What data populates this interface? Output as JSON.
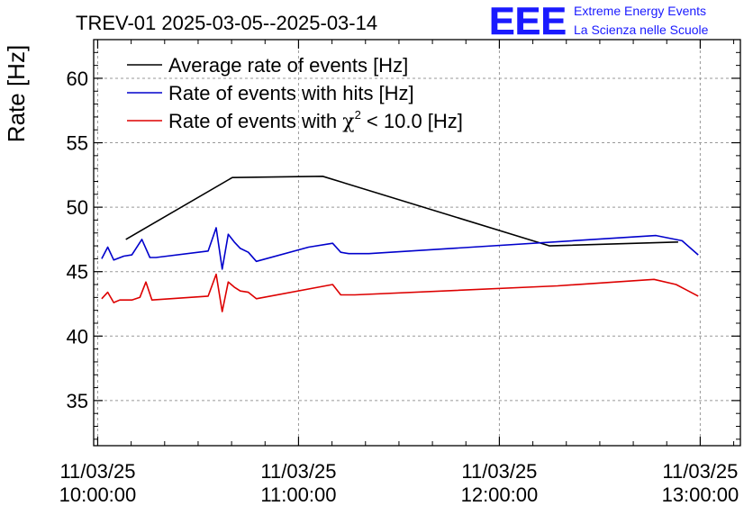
{
  "header": {
    "title": "TREV-01 2025-03-05--2025-03-14",
    "logo_text": "EEE",
    "org_line1": "Extreme Energy Events",
    "org_line2": "La Scienza nelle Scuole",
    "brand_color": "#1a1aff"
  },
  "chart_data": {
    "type": "line",
    "title": "TREV-01 2025-03-05--2025-03-14",
    "xlabel": "",
    "ylabel": "Rate [Hz]",
    "xlim": [
      -0.02,
      3.2
    ],
    "ylim": [
      31.5,
      63
    ],
    "x_unit": "hours since 11/03/25 10:00:00",
    "yticks": [
      35,
      40,
      45,
      50,
      55,
      60
    ],
    "ytick_labels": [
      "35",
      "40",
      "45",
      "50",
      "55",
      "60"
    ],
    "xticks": [
      0,
      1,
      2,
      3
    ],
    "xtick_labels": [
      {
        "date": "11/03/25",
        "time": "10:00:00"
      },
      {
        "date": "11/03/25",
        "time": "11:00:00"
      },
      {
        "date": "11/03/25",
        "time": "12:00:00"
      },
      {
        "date": "11/03/25",
        "time": "13:00:00"
      }
    ],
    "grid": true,
    "legend_position": "top-left",
    "series": [
      {
        "name": "Average rate of events [Hz]",
        "legend_label": "Average rate of events [Hz]",
        "color": "#000000",
        "x": [
          0.14,
          0.67,
          1.12,
          2.25,
          2.89
        ],
        "y": [
          47.5,
          52.3,
          52.4,
          47.0,
          47.3
        ]
      },
      {
        "name": "Rate of events with hits [Hz]",
        "legend_label": "Rate of events with hits [Hz]",
        "color": "#0000cc",
        "x": [
          0.02,
          0.05,
          0.08,
          0.13,
          0.17,
          0.22,
          0.26,
          0.29,
          0.55,
          0.59,
          0.62,
          0.65,
          0.68,
          0.71,
          0.75,
          0.79,
          1.05,
          1.17,
          1.21,
          1.25,
          1.35,
          2.78,
          2.91,
          2.99
        ],
        "y": [
          46.0,
          46.9,
          45.9,
          46.2,
          46.3,
          47.5,
          46.1,
          46.1,
          46.6,
          48.4,
          45.2,
          47.9,
          47.3,
          46.8,
          46.5,
          45.8,
          46.9,
          47.2,
          46.5,
          46.4,
          46.4,
          47.8,
          47.4,
          46.3
        ]
      },
      {
        "name": "Rate of events with chi-squared < 10.0 [Hz]",
        "legend_prefix": "Rate of events with ",
        "legend_chi": "χ",
        "legend_sup": "2",
        "legend_suffix": " < 10.0 [Hz]",
        "color": "#dd0000",
        "x": [
          0.02,
          0.05,
          0.08,
          0.11,
          0.17,
          0.21,
          0.24,
          0.27,
          0.55,
          0.59,
          0.62,
          0.65,
          0.68,
          0.71,
          0.75,
          0.79,
          1.17,
          1.21,
          1.28,
          2.29,
          2.77,
          2.88,
          2.99
        ],
        "y": [
          42.9,
          43.4,
          42.6,
          42.8,
          42.8,
          43.0,
          44.2,
          42.8,
          43.1,
          44.8,
          41.9,
          44.2,
          43.8,
          43.5,
          43.4,
          42.9,
          44.0,
          43.2,
          43.2,
          43.9,
          44.4,
          44.0,
          43.1
        ]
      }
    ]
  }
}
